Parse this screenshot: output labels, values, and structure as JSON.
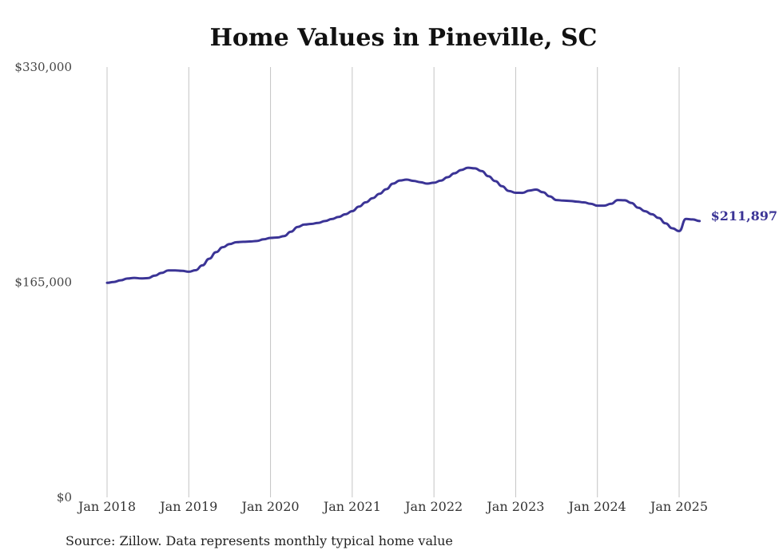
{
  "chart_data": {
    "type": "line",
    "title": "Home Values in Pineville, SC",
    "xlabel": "",
    "ylabel": "",
    "ylim": [
      0,
      330000
    ],
    "y_ticks": [
      {
        "value": 0,
        "label": "$0"
      },
      {
        "value": 165000,
        "label": "$165,000"
      },
      {
        "value": 330000,
        "label": "$330,000"
      }
    ],
    "x_ticks": [
      {
        "year": 2018,
        "label": "Jan 2018"
      },
      {
        "year": 2019,
        "label": "Jan 2019"
      },
      {
        "year": 2020,
        "label": "Jan 2020"
      },
      {
        "year": 2021,
        "label": "Jan 2021"
      },
      {
        "year": 2022,
        "label": "Jan 2022"
      },
      {
        "year": 2023,
        "label": "Jan 2023"
      },
      {
        "year": 2024,
        "label": "Jan 2024"
      },
      {
        "year": 2025,
        "label": "Jan 2025"
      }
    ],
    "grid": "vertical",
    "series": [
      {
        "color": "#3b3496",
        "points": [
          [
            "2018-01",
            164500
          ],
          [
            "2018-02",
            165200
          ],
          [
            "2018-03",
            166500
          ],
          [
            "2018-04",
            167800
          ],
          [
            "2018-05",
            168300
          ],
          [
            "2018-06",
            167900
          ],
          [
            "2018-07",
            168100
          ],
          [
            "2018-08",
            170000
          ],
          [
            "2018-09",
            172100
          ],
          [
            "2018-10",
            174000
          ],
          [
            "2018-11",
            174000
          ],
          [
            "2018-12",
            173700
          ],
          [
            "2019-01",
            173000
          ],
          [
            "2019-02",
            174200
          ],
          [
            "2019-03",
            177900
          ],
          [
            "2019-04",
            183000
          ],
          [
            "2019-05",
            188000
          ],
          [
            "2019-06",
            191900
          ],
          [
            "2019-07",
            194200
          ],
          [
            "2019-08",
            195700
          ],
          [
            "2019-09",
            196000
          ],
          [
            "2019-10",
            196200
          ],
          [
            "2019-11",
            196600
          ],
          [
            "2019-12",
            197900
          ],
          [
            "2020-01",
            199000
          ],
          [
            "2020-02",
            199300
          ],
          [
            "2020-03",
            200400
          ],
          [
            "2020-04",
            203700
          ],
          [
            "2020-05",
            207400
          ],
          [
            "2020-06",
            209200
          ],
          [
            "2020-07",
            209700
          ],
          [
            "2020-08",
            210500
          ],
          [
            "2020-09",
            211900
          ],
          [
            "2020-10",
            213400
          ],
          [
            "2020-11",
            215000
          ],
          [
            "2020-12",
            217100
          ],
          [
            "2021-01",
            219500
          ],
          [
            "2021-02",
            223000
          ],
          [
            "2021-03",
            226300
          ],
          [
            "2021-04",
            229500
          ],
          [
            "2021-05",
            232800
          ],
          [
            "2021-06",
            236300
          ],
          [
            "2021-07",
            240600
          ],
          [
            "2021-08",
            243000
          ],
          [
            "2021-09",
            243700
          ],
          [
            "2021-10",
            242700
          ],
          [
            "2021-11",
            241700
          ],
          [
            "2021-12",
            240600
          ],
          [
            "2022-01",
            241300
          ],
          [
            "2022-02",
            242900
          ],
          [
            "2022-03",
            245500
          ],
          [
            "2022-04",
            248500
          ],
          [
            "2022-05",
            251000
          ],
          [
            "2022-06",
            252800
          ],
          [
            "2022-07",
            252300
          ],
          [
            "2022-08",
            250200
          ],
          [
            "2022-09",
            246300
          ],
          [
            "2022-10",
            242500
          ],
          [
            "2022-11",
            238600
          ],
          [
            "2022-12",
            235000
          ],
          [
            "2023-01",
            233600
          ],
          [
            "2023-02",
            233500
          ],
          [
            "2023-03",
            235300
          ],
          [
            "2023-04",
            236000
          ],
          [
            "2023-05",
            234000
          ],
          [
            "2023-06",
            230800
          ],
          [
            "2023-07",
            228000
          ],
          [
            "2023-08",
            227600
          ],
          [
            "2023-09",
            227300
          ],
          [
            "2023-10",
            226800
          ],
          [
            "2023-11",
            226200
          ],
          [
            "2023-12",
            225200
          ],
          [
            "2024-01",
            223700
          ],
          [
            "2024-02",
            223700
          ],
          [
            "2024-03",
            225100
          ],
          [
            "2024-04",
            228000
          ],
          [
            "2024-05",
            227800
          ],
          [
            "2024-06",
            225800
          ],
          [
            "2024-07",
            222100
          ],
          [
            "2024-08",
            219400
          ],
          [
            "2024-09",
            217100
          ],
          [
            "2024-10",
            214300
          ],
          [
            "2024-11",
            210100
          ],
          [
            "2024-12",
            206300
          ],
          [
            "2025-01",
            204200
          ],
          [
            "2025-02",
            213500
          ],
          [
            "2025-03",
            213100
          ],
          [
            "2025-04",
            211897
          ]
        ]
      }
    ],
    "end_label": "$211,897",
    "source_note": "Source: Zillow. Data represents monthly typical home value"
  }
}
